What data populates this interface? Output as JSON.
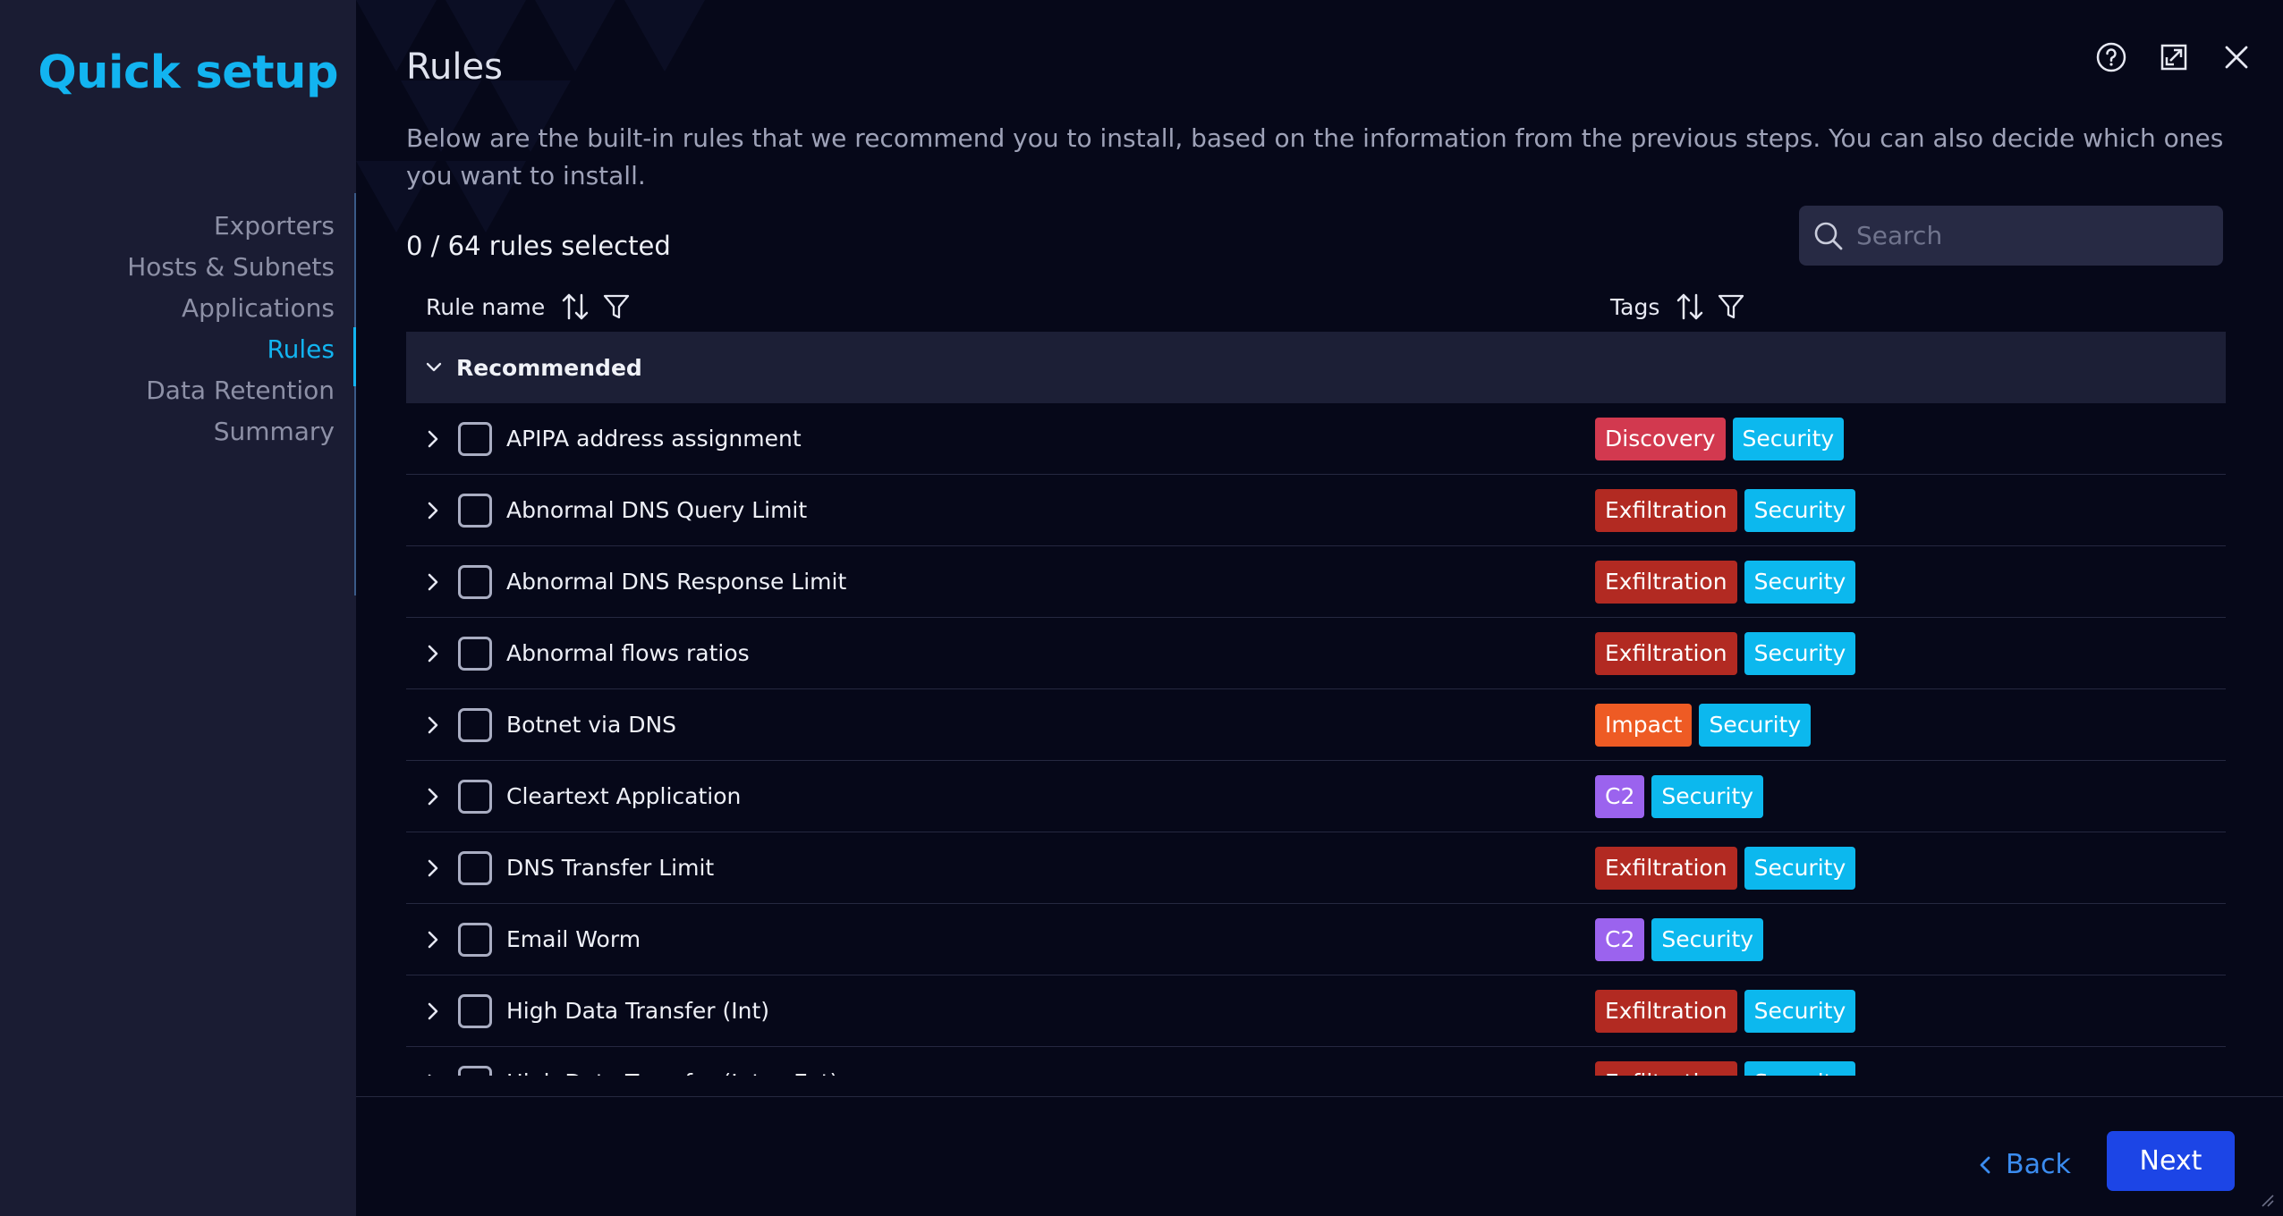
{
  "sidebar": {
    "title": "Quick setup",
    "steps": [
      {
        "label": "Exporters",
        "active": false
      },
      {
        "label": "Hosts & Subnets",
        "active": false
      },
      {
        "label": "Applications",
        "active": false
      },
      {
        "label": "Rules",
        "active": true
      },
      {
        "label": "Data Retention",
        "active": false
      },
      {
        "label": "Summary",
        "active": false
      }
    ]
  },
  "header": {
    "title": "Rules",
    "description": "Below are the built-in rules that we recommend you to install, based on the information from the previous steps. You can also decide which ones you want to install.",
    "icons": [
      "help-icon",
      "expand-icon",
      "close-icon"
    ]
  },
  "selection": {
    "count_text": "0 / 64 rules selected"
  },
  "search": {
    "placeholder": "Search",
    "value": ""
  },
  "table": {
    "columns": {
      "rule_name": "Rule name",
      "tags": "Tags"
    },
    "group": {
      "label": "Recommended",
      "expanded": true
    },
    "rows": [
      {
        "name": "APIPA address assignment",
        "checked": false,
        "tags": [
          "Discovery",
          "Security"
        ]
      },
      {
        "name": "Abnormal DNS Query Limit",
        "checked": false,
        "tags": [
          "Exfiltration",
          "Security"
        ]
      },
      {
        "name": "Abnormal DNS Response Limit",
        "checked": false,
        "tags": [
          "Exfiltration",
          "Security"
        ]
      },
      {
        "name": "Abnormal flows ratios",
        "checked": false,
        "tags": [
          "Exfiltration",
          "Security"
        ]
      },
      {
        "name": "Botnet via DNS",
        "checked": false,
        "tags": [
          "Impact",
          "Security"
        ]
      },
      {
        "name": "Cleartext Application",
        "checked": false,
        "tags": [
          "C2",
          "Security"
        ]
      },
      {
        "name": "DNS Transfer Limit",
        "checked": false,
        "tags": [
          "Exfiltration",
          "Security"
        ]
      },
      {
        "name": "Email Worm",
        "checked": false,
        "tags": [
          "C2",
          "Security"
        ]
      },
      {
        "name": "High Data Transfer (Int)",
        "checked": false,
        "tags": [
          "Exfiltration",
          "Security"
        ]
      },
      {
        "name": "High Data Transfer (Int → Ext)",
        "checked": false,
        "tags": [
          "Exfiltration",
          "Security"
        ]
      }
    ]
  },
  "tag_colors": {
    "Discovery": "#d2394f",
    "Exfiltration": "#b22a22",
    "Impact": "#ee5b24",
    "C2": "#9b63ee",
    "Security": "#0cb8ee"
  },
  "footer": {
    "back_label": "Back",
    "next_label": "Next"
  }
}
